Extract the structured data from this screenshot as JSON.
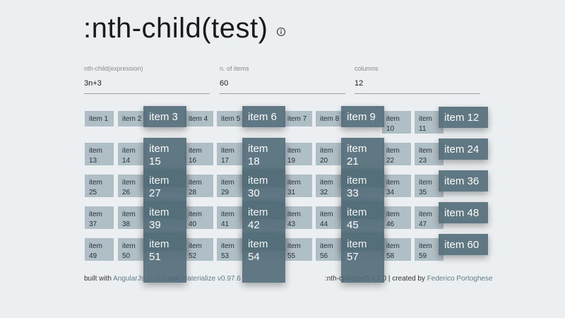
{
  "header": {
    "title": ":nth-child(test)",
    "info_icon": "info-icon"
  },
  "fields": {
    "expression": {
      "label": "nth-child(expression)",
      "value": "3n+3"
    },
    "items": {
      "label": "n. of items",
      "value": "60"
    },
    "columns": {
      "label": "columns",
      "value": "12"
    }
  },
  "grid": {
    "item_prefix": "item",
    "count": 60,
    "columns": 12,
    "highlighted": [
      3,
      6,
      9,
      12,
      15,
      18,
      21,
      24,
      27,
      30,
      33,
      36,
      39,
      42,
      45,
      48,
      51,
      54,
      57,
      60
    ]
  },
  "footer": {
    "left_text1": "built with ",
    "angular_link": "AngularJs v1.5.5",
    "left_text2": " and ",
    "materialize_link": "Materialize v0.97.6",
    "right_text": ":nth-child(test) v.1.0 | created by ",
    "author_link": "Federico Portoghese"
  },
  "colors": {
    "background": "#eceff1",
    "item": "#b0bec5",
    "item_highlight": "#546e7a",
    "link": "#5f7d8a"
  }
}
